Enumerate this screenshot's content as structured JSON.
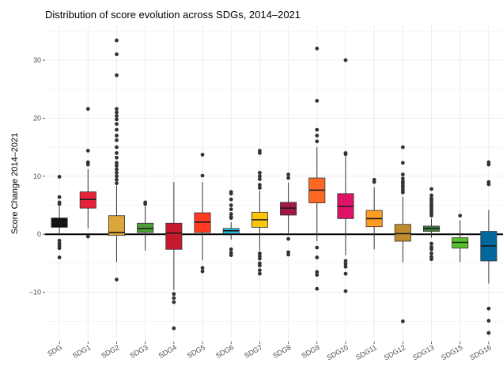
{
  "chart_data": {
    "type": "box",
    "title": "Distribution of score evolution across SDGs, 2014–2021",
    "xlabel": "",
    "ylabel": "Score Change 2014–2021",
    "ylim": [
      -18.5,
      36
    ],
    "yticks": [
      -10,
      0,
      10,
      20,
      30
    ],
    "ytick_labels": [
      "−10",
      "0",
      "10",
      "20",
      "30"
    ],
    "reference_line": 0,
    "grid": true,
    "categories": [
      "SDG",
      "SDG1",
      "SDG2",
      "SDG3",
      "SDG4",
      "SDG5",
      "SDG6",
      "SDG7",
      "SDG8",
      "SDG9",
      "SDG10",
      "SDG11",
      "SDG12",
      "SDG13",
      "SDG15",
      "SDG16"
    ],
    "boxes": [
      {
        "category": "SDG",
        "color": "#111111",
        "q1": 1.2,
        "median": 2.0,
        "q3": 2.8,
        "whisker_low": -0.2,
        "whisker_high": 4.8,
        "outliers": [
          9.9,
          6.4,
          5.5,
          5.2,
          -1.1,
          -1.6,
          -2.0,
          -2.4,
          -4.0
        ]
      },
      {
        "category": "SDG1",
        "color": "#e5243b",
        "q1": 4.5,
        "median": 6.0,
        "q3": 7.3,
        "whisker_low": 1.0,
        "whisker_high": 11.2,
        "outliers": [
          21.6,
          14.4,
          12.4,
          12.0,
          -0.4
        ]
      },
      {
        "category": "SDG2",
        "color": "#dda63a",
        "q1": -0.2,
        "median": 0.3,
        "q3": 3.2,
        "whisker_low": -4.8,
        "whisker_high": 8.4,
        "outliers": [
          33.4,
          31.0,
          27.4,
          21.6,
          21.0,
          20.4,
          19.8,
          19.0,
          18.0,
          17.0,
          16.2,
          15.0,
          14.0,
          13.2,
          12.3,
          11.8,
          11.2,
          10.6,
          10.0,
          9.4,
          8.8,
          -7.8
        ]
      },
      {
        "category": "SDG3",
        "color": "#4c9f38",
        "q1": 0.3,
        "median": 1.0,
        "q3": 1.9,
        "whisker_low": -2.8,
        "whisker_high": 4.8,
        "outliers": [
          5.5,
          5.2
        ]
      },
      {
        "category": "SDG4",
        "color": "#c5192d",
        "q1": -2.6,
        "median": 0.2,
        "q3": 1.9,
        "whisker_low": -9.6,
        "whisker_high": 9.0,
        "outliers": [
          -10.3,
          -11.0,
          -11.7,
          -16.2
        ]
      },
      {
        "category": "SDG5",
        "color": "#ff3a21",
        "q1": 0.3,
        "median": 2.1,
        "q3": 3.7,
        "whisker_low": -4.5,
        "whisker_high": 9.0,
        "outliers": [
          13.7,
          10.1,
          -5.8,
          -6.4
        ]
      },
      {
        "category": "SDG6",
        "color": "#26bde2",
        "q1": 0.1,
        "median": 0.6,
        "q3": 1.0,
        "whisker_low": -0.9,
        "whisker_high": 2.1,
        "outliers": [
          7.3,
          7.0,
          6.0,
          5.0,
          4.3,
          3.5,
          3.0,
          2.8,
          -2.6,
          -3.2,
          -3.6
        ]
      },
      {
        "category": "SDG7",
        "color": "#fcc30b",
        "q1": 1.2,
        "median": 2.5,
        "q3": 3.8,
        "whisker_low": -2.8,
        "whisker_high": 7.5,
        "outliers": [
          14.4,
          14.0,
          10.6,
          10.0,
          9.5,
          8.5,
          8.0,
          -3.3,
          -3.8,
          -4.2,
          -5.0,
          -5.4,
          -6.2,
          -6.8
        ]
      },
      {
        "category": "SDG8",
        "color": "#a21942",
        "q1": 3.3,
        "median": 4.5,
        "q3": 5.5,
        "whisker_low": 0.2,
        "whisker_high": 8.9,
        "outliers": [
          10.3,
          9.7,
          -0.8,
          -3.1,
          -3.5
        ]
      },
      {
        "category": "SDG9",
        "color": "#fd6925",
        "q1": 5.4,
        "median": 7.6,
        "q3": 9.7,
        "whisker_low": -1.2,
        "whisker_high": 15.0,
        "outliers": [
          32.0,
          23.0,
          18.0,
          17.0,
          16.0,
          -2.3,
          -4.0,
          -6.5,
          -7.0,
          -9.4
        ]
      },
      {
        "category": "SDG10",
        "color": "#dd1367",
        "q1": 2.7,
        "median": 4.8,
        "q3": 7.0,
        "whisker_low": -3.6,
        "whisker_high": 13.4,
        "outliers": [
          30.0,
          14.0,
          13.8,
          -4.6,
          -5.1,
          -5.6,
          -6.8,
          -9.8
        ]
      },
      {
        "category": "SDG11",
        "color": "#fd9d24",
        "q1": 1.3,
        "median": 2.7,
        "q3": 4.1,
        "whisker_low": -2.6,
        "whisker_high": 8.1,
        "outliers": [
          9.4,
          9.0
        ]
      },
      {
        "category": "SDG12",
        "color": "#bf8b2e",
        "q1": -1.2,
        "median": 0.1,
        "q3": 1.7,
        "whisker_low": -4.8,
        "whisker_high": 6.5,
        "outliers": [
          15.0,
          12.3,
          10.3,
          9.6,
          9.1,
          8.8,
          8.4,
          8.0,
          7.6,
          7.2,
          -15.0
        ]
      },
      {
        "category": "SDG13",
        "color": "#3f7e44",
        "q1": 0.5,
        "median": 1.0,
        "q3": 1.4,
        "whisker_low": -0.6,
        "whisker_high": 2.7,
        "outliers": [
          7.8,
          6.7,
          6.2,
          5.9,
          5.6,
          5.2,
          4.9,
          4.6,
          4.3,
          4.0,
          3.6,
          3.2,
          -1.6,
          -2.2,
          -2.6,
          -3.3,
          -3.9,
          -4.3
        ]
      },
      {
        "category": "SDG15",
        "color": "#56c02b",
        "q1": -2.4,
        "median": -1.4,
        "q3": -0.6,
        "whisker_low": -4.8,
        "whisker_high": 2.4,
        "outliers": [
          3.2
        ]
      },
      {
        "category": "SDG16",
        "color": "#00689d",
        "q1": -4.6,
        "median": -2.0,
        "q3": 0.5,
        "whisker_low": -8.5,
        "whisker_high": 4.2,
        "outliers": [
          12.4,
          12.0,
          9.0,
          8.6,
          -12.8,
          -14.9,
          -17.0
        ]
      }
    ]
  }
}
